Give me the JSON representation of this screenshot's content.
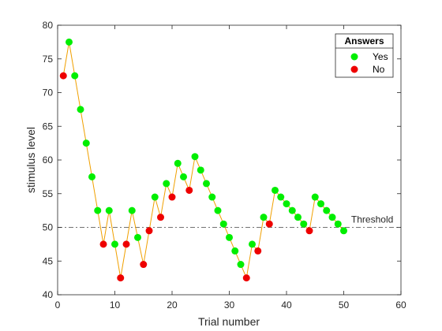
{
  "chart_data": {
    "type": "scatter",
    "xlabel": "Trial number",
    "ylabel": "stimulus level",
    "xlim": [
      0,
      60
    ],
    "ylim": [
      40,
      80
    ],
    "xticks": [
      0,
      10,
      20,
      30,
      40,
      50,
      60
    ],
    "yticks": [
      40,
      45,
      50,
      55,
      60,
      65,
      70,
      75,
      80
    ],
    "grid": false,
    "legend": {
      "title": "Answers",
      "placement": "top-right",
      "entries": [
        {
          "label": "Yes",
          "color": "#00ee00"
        },
        {
          "label": "No",
          "color": "#ee0000"
        }
      ]
    },
    "line_color": "#f0a000",
    "threshold": {
      "value": 50,
      "label": "Threshold",
      "color": "#444444"
    },
    "points": [
      {
        "x": 1,
        "y": 72.5,
        "answer": "No"
      },
      {
        "x": 2,
        "y": 77.5,
        "answer": "Yes"
      },
      {
        "x": 3,
        "y": 72.5,
        "answer": "Yes"
      },
      {
        "x": 4,
        "y": 67.5,
        "answer": "Yes"
      },
      {
        "x": 5,
        "y": 62.5,
        "answer": "Yes"
      },
      {
        "x": 6,
        "y": 57.5,
        "answer": "Yes"
      },
      {
        "x": 7,
        "y": 52.5,
        "answer": "Yes"
      },
      {
        "x": 8,
        "y": 47.5,
        "answer": "No"
      },
      {
        "x": 9,
        "y": 52.5,
        "answer": "Yes"
      },
      {
        "x": 10,
        "y": 47.5,
        "answer": "Yes"
      },
      {
        "x": 11,
        "y": 42.5,
        "answer": "No"
      },
      {
        "x": 12,
        "y": 47.5,
        "answer": "No"
      },
      {
        "x": 13,
        "y": 52.5,
        "answer": "Yes"
      },
      {
        "x": 14,
        "y": 48.5,
        "answer": "Yes"
      },
      {
        "x": 15,
        "y": 44.5,
        "answer": "No"
      },
      {
        "x": 16,
        "y": 49.5,
        "answer": "No"
      },
      {
        "x": 17,
        "y": 54.5,
        "answer": "Yes"
      },
      {
        "x": 18,
        "y": 51.5,
        "answer": "No"
      },
      {
        "x": 19,
        "y": 56.5,
        "answer": "Yes"
      },
      {
        "x": 20,
        "y": 54.5,
        "answer": "No"
      },
      {
        "x": 21,
        "y": 59.5,
        "answer": "Yes"
      },
      {
        "x": 22,
        "y": 57.5,
        "answer": "Yes"
      },
      {
        "x": 23,
        "y": 55.5,
        "answer": "No"
      },
      {
        "x": 24,
        "y": 60.5,
        "answer": "Yes"
      },
      {
        "x": 25,
        "y": 58.5,
        "answer": "Yes"
      },
      {
        "x": 26,
        "y": 56.5,
        "answer": "Yes"
      },
      {
        "x": 27,
        "y": 54.5,
        "answer": "Yes"
      },
      {
        "x": 28,
        "y": 52.5,
        "answer": "Yes"
      },
      {
        "x": 29,
        "y": 50.5,
        "answer": "Yes"
      },
      {
        "x": 30,
        "y": 48.5,
        "answer": "Yes"
      },
      {
        "x": 31,
        "y": 46.5,
        "answer": "Yes"
      },
      {
        "x": 32,
        "y": 44.5,
        "answer": "Yes"
      },
      {
        "x": 33,
        "y": 42.5,
        "answer": "No"
      },
      {
        "x": 34,
        "y": 47.5,
        "answer": "Yes"
      },
      {
        "x": 35,
        "y": 46.5,
        "answer": "No"
      },
      {
        "x": 36,
        "y": 51.5,
        "answer": "Yes"
      },
      {
        "x": 37,
        "y": 50.5,
        "answer": "No"
      },
      {
        "x": 38,
        "y": 55.5,
        "answer": "Yes"
      },
      {
        "x": 39,
        "y": 54.5,
        "answer": "Yes"
      },
      {
        "x": 40,
        "y": 53.5,
        "answer": "Yes"
      },
      {
        "x": 41,
        "y": 52.5,
        "answer": "Yes"
      },
      {
        "x": 42,
        "y": 51.5,
        "answer": "Yes"
      },
      {
        "x": 43,
        "y": 50.5,
        "answer": "Yes"
      },
      {
        "x": 44,
        "y": 49.5,
        "answer": "No"
      },
      {
        "x": 45,
        "y": 54.5,
        "answer": "Yes"
      },
      {
        "x": 46,
        "y": 53.5,
        "answer": "Yes"
      },
      {
        "x": 47,
        "y": 52.5,
        "answer": "Yes"
      },
      {
        "x": 48,
        "y": 51.5,
        "answer": "Yes"
      },
      {
        "x": 49,
        "y": 50.5,
        "answer": "Yes"
      },
      {
        "x": 50,
        "y": 49.5,
        "answer": "Yes"
      }
    ]
  }
}
